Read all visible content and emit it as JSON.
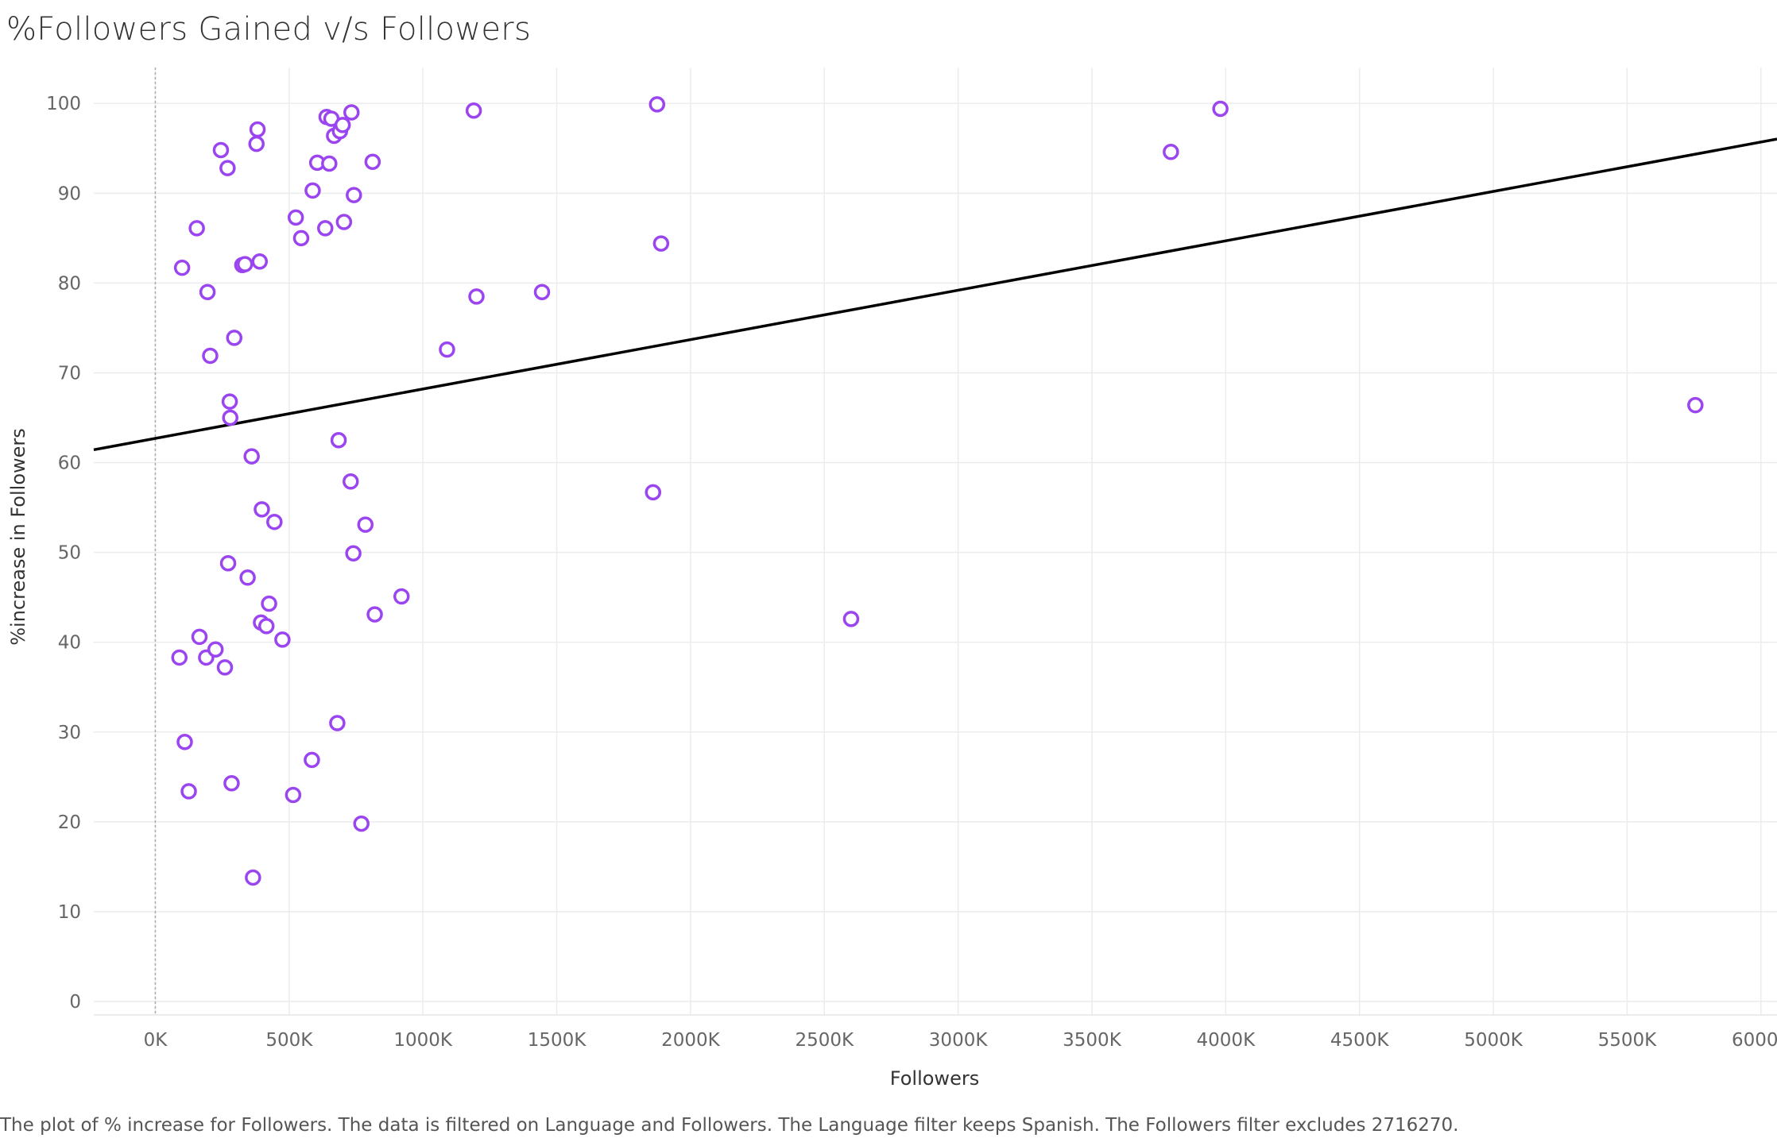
{
  "title": "%Followers Gained v/s Followers",
  "caption": "The plot of % increase for Followers. The data is filtered on Language and Followers. The Language filter keeps Spanish. The Followers filter excludes 2716270.",
  "colors": {
    "marker": "#9b45f0",
    "trend": "#000000",
    "grid": "#ececec",
    "zero_line": "#aaaaaa"
  },
  "chart_data": {
    "type": "scatter",
    "title": "%Followers Gained v/s Followers",
    "xlabel": "Followers",
    "ylabel": "%increase in Followers",
    "xlim": [
      -230,
      6060
    ],
    "ylim": [
      -1.5,
      104
    ],
    "x_unit": "thousands of followers",
    "x_ticks": [
      0,
      500,
      1000,
      1500,
      2000,
      2500,
      3000,
      3500,
      4000,
      4500,
      5000,
      5500,
      6000
    ],
    "x_tick_labels": [
      "0K",
      "500K",
      "1000K",
      "1500K",
      "2000K",
      "2500K",
      "3000K",
      "3500K",
      "4000K",
      "4500K",
      "5000K",
      "5500K",
      "6000K"
    ],
    "y_ticks": [
      0,
      10,
      20,
      30,
      40,
      50,
      60,
      70,
      80,
      90,
      100
    ],
    "y_tick_labels": [
      "0",
      "10",
      "20",
      "30",
      "40",
      "50",
      "60",
      "70",
      "80",
      "90",
      "100"
    ],
    "grid": true,
    "marker": "open circle",
    "trend_line": {
      "type": "linear",
      "y_at_x0": 62.7,
      "slope_per_1000K": 5.5
    },
    "points": [
      {
        "x": 90,
        "y": 38.3
      },
      {
        "x": 100,
        "y": 81.7
      },
      {
        "x": 110,
        "y": 28.9
      },
      {
        "x": 125,
        "y": 23.4
      },
      {
        "x": 155,
        "y": 86.1
      },
      {
        "x": 165,
        "y": 40.6
      },
      {
        "x": 190,
        "y": 38.3
      },
      {
        "x": 195,
        "y": 79.0
      },
      {
        "x": 205,
        "y": 71.9
      },
      {
        "x": 225,
        "y": 39.2
      },
      {
        "x": 245,
        "y": 94.8
      },
      {
        "x": 260,
        "y": 37.2
      },
      {
        "x": 270,
        "y": 92.8
      },
      {
        "x": 272,
        "y": 48.8
      },
      {
        "x": 278,
        "y": 66.8
      },
      {
        "x": 280,
        "y": 65.0
      },
      {
        "x": 285,
        "y": 24.3
      },
      {
        "x": 295,
        "y": 73.9
      },
      {
        "x": 325,
        "y": 82.0
      },
      {
        "x": 335,
        "y": 82.1
      },
      {
        "x": 345,
        "y": 47.2
      },
      {
        "x": 360,
        "y": 60.7
      },
      {
        "x": 365,
        "y": 13.8
      },
      {
        "x": 378,
        "y": 95.5
      },
      {
        "x": 382,
        "y": 97.1
      },
      {
        "x": 390,
        "y": 82.4
      },
      {
        "x": 395,
        "y": 42.2
      },
      {
        "x": 398,
        "y": 54.8
      },
      {
        "x": 415,
        "y": 41.8
      },
      {
        "x": 425,
        "y": 44.3
      },
      {
        "x": 445,
        "y": 53.4
      },
      {
        "x": 475,
        "y": 40.3
      },
      {
        "x": 515,
        "y": 23.0
      },
      {
        "x": 525,
        "y": 87.3
      },
      {
        "x": 545,
        "y": 85.0
      },
      {
        "x": 585,
        "y": 26.9
      },
      {
        "x": 588,
        "y": 90.3
      },
      {
        "x": 605,
        "y": 93.4
      },
      {
        "x": 635,
        "y": 86.1
      },
      {
        "x": 640,
        "y": 98.5
      },
      {
        "x": 650,
        "y": 93.3
      },
      {
        "x": 658,
        "y": 98.3
      },
      {
        "x": 668,
        "y": 96.4
      },
      {
        "x": 680,
        "y": 31.0
      },
      {
        "x": 685,
        "y": 62.5
      },
      {
        "x": 690,
        "y": 96.9
      },
      {
        "x": 700,
        "y": 97.6
      },
      {
        "x": 705,
        "y": 86.8
      },
      {
        "x": 730,
        "y": 57.9
      },
      {
        "x": 733,
        "y": 99.0
      },
      {
        "x": 740,
        "y": 49.9
      },
      {
        "x": 742,
        "y": 89.8
      },
      {
        "x": 770,
        "y": 19.8
      },
      {
        "x": 785,
        "y": 53.1
      },
      {
        "x": 812,
        "y": 93.5
      },
      {
        "x": 820,
        "y": 43.1
      },
      {
        "x": 920,
        "y": 45.1
      },
      {
        "x": 1090,
        "y": 72.6
      },
      {
        "x": 1190,
        "y": 99.2
      },
      {
        "x": 1200,
        "y": 78.5
      },
      {
        "x": 1445,
        "y": 79.0
      },
      {
        "x": 1860,
        "y": 56.7
      },
      {
        "x": 1875,
        "y": 99.9
      },
      {
        "x": 1890,
        "y": 84.4
      },
      {
        "x": 2600,
        "y": 42.6
      },
      {
        "x": 3795,
        "y": 94.6
      },
      {
        "x": 3980,
        "y": 99.4
      },
      {
        "x": 5755,
        "y": 66.4
      }
    ]
  }
}
